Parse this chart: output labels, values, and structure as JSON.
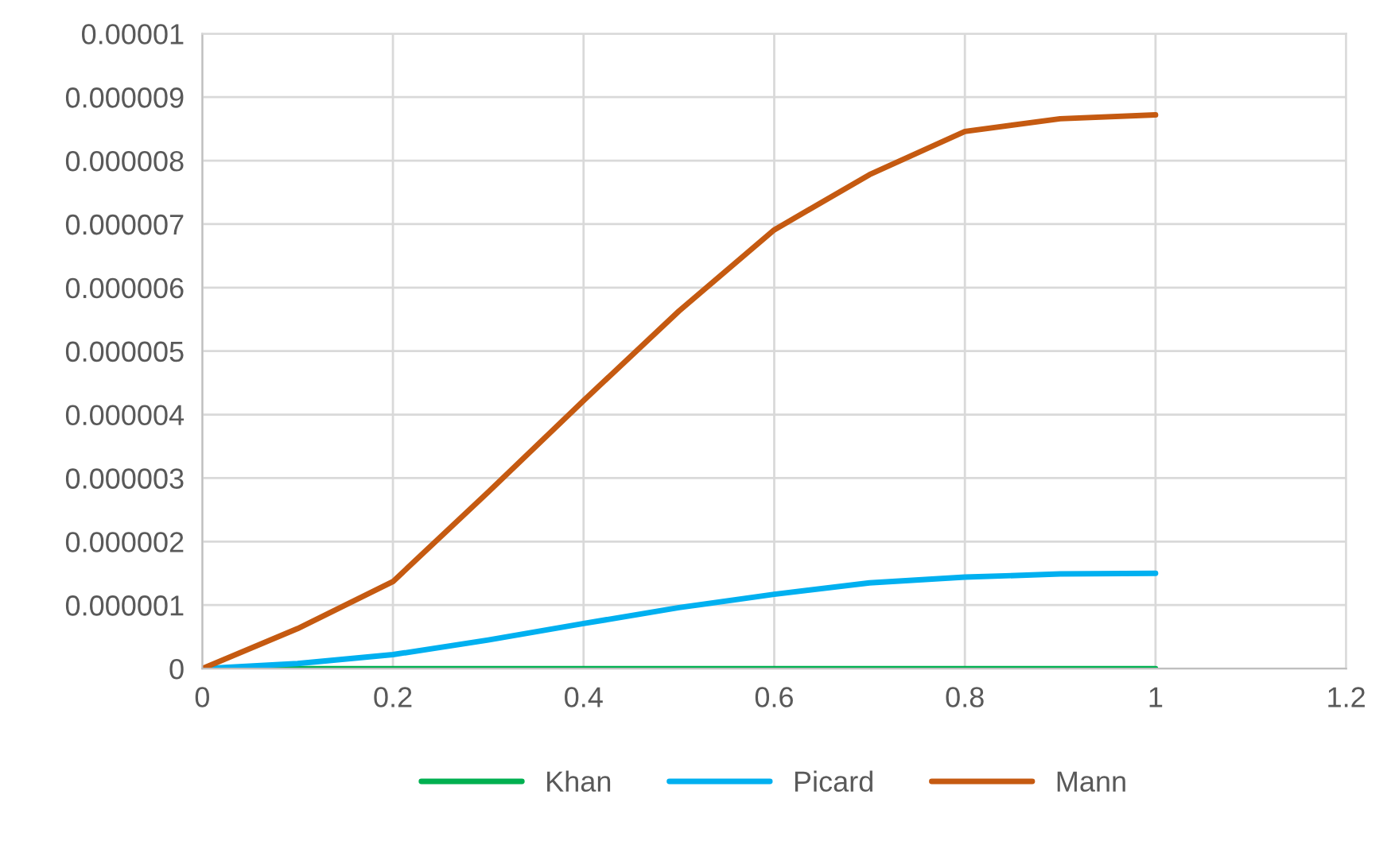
{
  "chart_data": {
    "type": "line",
    "x": [
      0,
      0.1,
      0.2,
      0.3,
      0.4,
      0.5,
      0.6,
      0.7,
      0.8,
      0.9,
      1
    ],
    "series": [
      {
        "name": "Khan",
        "color": "#00b050",
        "values": [
          0,
          0,
          0,
          0,
          0,
          0,
          0,
          0,
          0,
          0,
          0
        ]
      },
      {
        "name": "Picard",
        "color": "#00b0f0",
        "values": [
          0,
          8e-08,
          2.2e-07,
          4.5e-07,
          7.1e-07,
          9.6e-07,
          1.17e-06,
          1.35e-06,
          1.44e-06,
          1.49e-06,
          1.5e-06
        ]
      },
      {
        "name": "Mann",
        "color": "#c55a11",
        "values": [
          0,
          6.3e-07,
          1.37e-06,
          2.78e-06,
          4.22e-06,
          5.63e-06,
          6.91e-06,
          7.78e-06,
          8.46e-06,
          8.66e-06,
          8.72e-06
        ]
      }
    ],
    "xlim": [
      0,
      1.2
    ],
    "xticks": [
      0,
      0.2,
      0.4,
      0.6,
      0.8,
      1,
      1.2
    ],
    "ylim": [
      0,
      1e-05
    ],
    "yticks": [
      {
        "value": 0,
        "label": "0"
      },
      {
        "value": 1e-06,
        "label": "0.000001"
      },
      {
        "value": 2e-06,
        "label": "0.000002"
      },
      {
        "value": 3e-06,
        "label": "0.000003"
      },
      {
        "value": 4e-06,
        "label": "0.000004"
      },
      {
        "value": 5e-06,
        "label": "0.000005"
      },
      {
        "value": 6e-06,
        "label": "0.000006"
      },
      {
        "value": 7e-06,
        "label": "0.000007"
      },
      {
        "value": 8e-06,
        "label": "0.000008"
      },
      {
        "value": 9e-06,
        "label": "0.000009"
      },
      {
        "value": 1e-05,
        "label": "0.00001"
      }
    ],
    "grid": true,
    "legend": "bottom",
    "marker": "none",
    "line_style": "solid"
  }
}
